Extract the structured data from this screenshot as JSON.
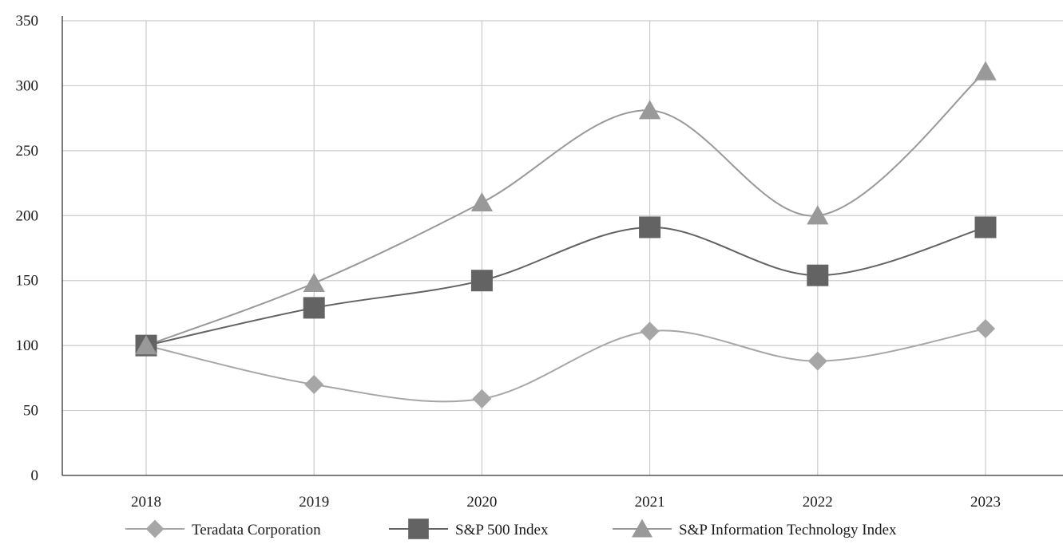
{
  "chart_data": {
    "type": "line",
    "categories": [
      "2018",
      "2019",
      "2020",
      "2021",
      "2022",
      "2023"
    ],
    "ylim": [
      0,
      350
    ],
    "yticks": [
      0,
      50,
      100,
      150,
      200,
      250,
      300,
      350
    ],
    "grid": true,
    "smooth": true,
    "legend_position": "bottom",
    "series": [
      {
        "name": "Teradata Corporation",
        "marker": "diamond",
        "color": "#a6a6a6",
        "values": [
          100,
          70,
          59,
          111,
          88,
          113
        ]
      },
      {
        "name": "S&P 500 Index",
        "marker": "square",
        "color": "#636363",
        "values": [
          100,
          129,
          150,
          191,
          154,
          191
        ]
      },
      {
        "name": "S&P Information Technology Index",
        "marker": "triangle",
        "color": "#999999",
        "values": [
          100,
          148,
          210,
          281,
          200,
          311
        ]
      }
    ]
  }
}
